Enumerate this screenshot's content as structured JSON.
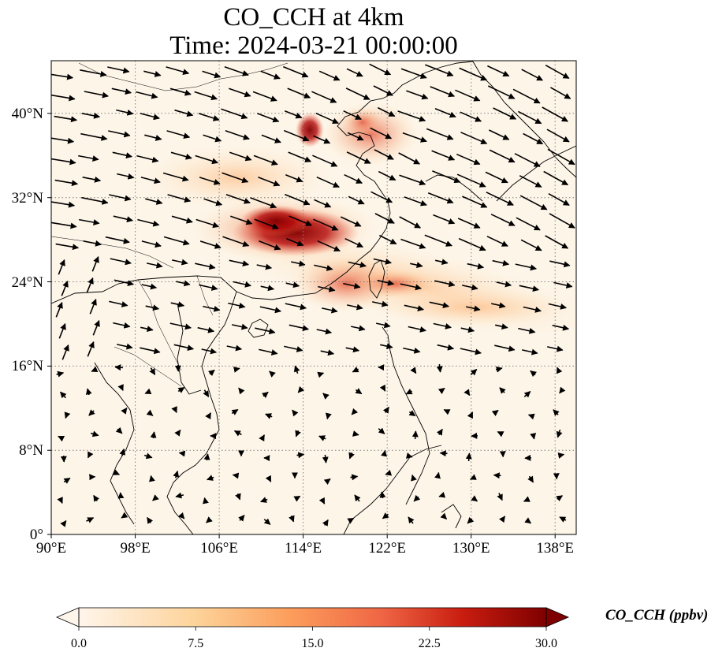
{
  "title": "CO_CCH at 4km",
  "subtitle": "Time: 2024-03-21 00:00:00",
  "colors": {
    "background": "#fdf5e8",
    "concentration_low": "#fff5eb",
    "concentration_high": "#7f0000",
    "coastline": "#000000",
    "gridline": "#7f7f7f",
    "wind_vector": "#000000"
  },
  "map": {
    "projection": "PlateCarree",
    "lon_range": [
      90,
      140
    ],
    "lat_range": [
      0,
      45
    ],
    "lon_ticks": [
      {
        "value": 90,
        "label": "90°E"
      },
      {
        "value": 98,
        "label": "98°E"
      },
      {
        "value": 106,
        "label": "106°E"
      },
      {
        "value": 114,
        "label": "114°E"
      },
      {
        "value": 122,
        "label": "122°E"
      },
      {
        "value": 130,
        "label": "130°E"
      },
      {
        "value": 138,
        "label": "138°E"
      }
    ],
    "lat_ticks": [
      {
        "value": 0,
        "label": "0°"
      },
      {
        "value": 8,
        "label": "8°N"
      },
      {
        "value": 16,
        "label": "16°N"
      },
      {
        "value": 24,
        "label": "24°N"
      },
      {
        "value": 32,
        "label": "32°N"
      },
      {
        "value": 40,
        "label": "40°N"
      }
    ],
    "gridlines": "dotted",
    "overlays": [
      "coastlines",
      "country borders",
      "wind vectors"
    ]
  },
  "colorbar": {
    "label": "CO_CCH (ppbv)",
    "colormap": "OrRd",
    "range": [
      0,
      30
    ],
    "extend": "both",
    "ticks": [
      {
        "value": 0,
        "label": "0.0"
      },
      {
        "value": 7.5,
        "label": "7.5"
      },
      {
        "value": 15,
        "label": "15.0"
      },
      {
        "value": 22.5,
        "label": "22.5"
      },
      {
        "value": 30,
        "label": "30.0"
      }
    ]
  }
}
